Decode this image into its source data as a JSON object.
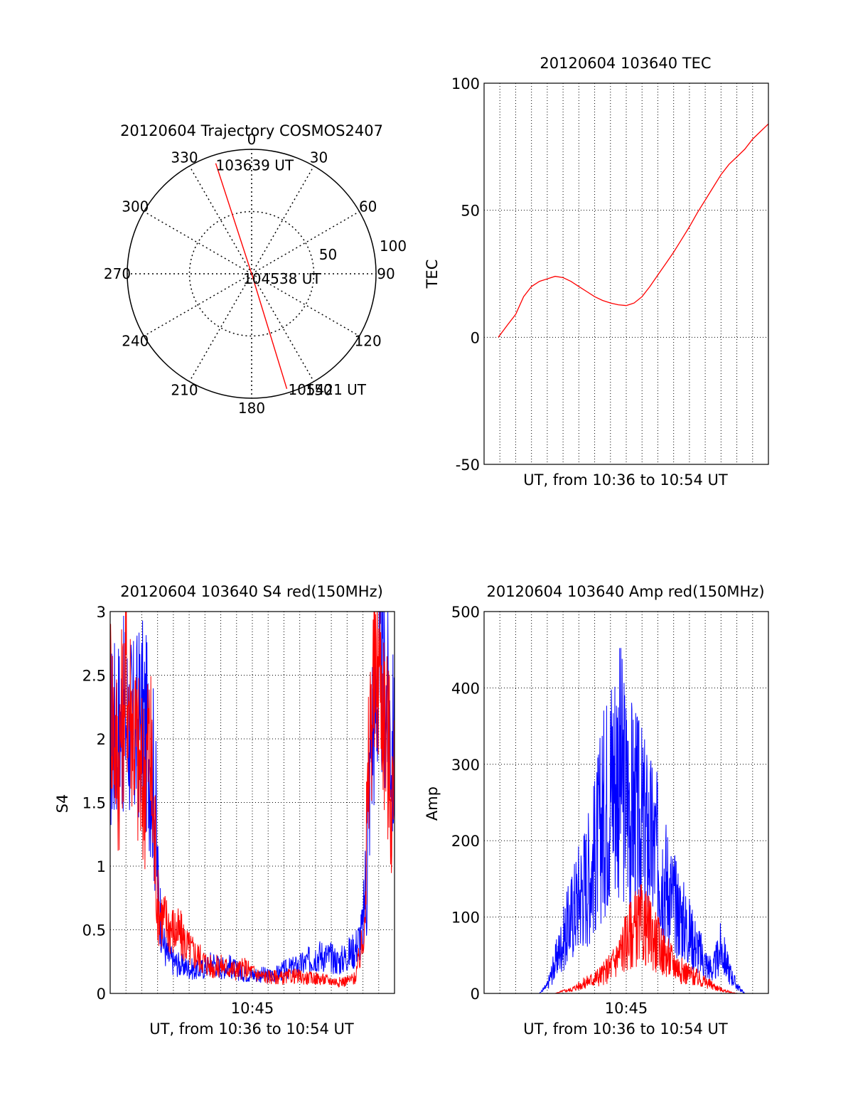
{
  "chart_data": [
    {
      "type": "polar",
      "title": "20120604 Trajectory COSMOS2407",
      "angle_labels": [
        "0",
        "30",
        "60",
        "90",
        "120",
        "150",
        "180",
        "210",
        "240",
        "270",
        "300",
        "330"
      ],
      "radial_labels": [
        "50",
        "100"
      ],
      "rlim": [
        0,
        100
      ],
      "grid": true,
      "trajectory": {
        "color": "#ff0000",
        "points": [
          {
            "label": "103639 UT",
            "azimuth": 342,
            "elevation": 6
          },
          {
            "label": "104538 UT",
            "azimuth": 0,
            "elevation": 90
          },
          {
            "label": "105421 UT",
            "azimuth": 163,
            "elevation": 3
          }
        ]
      }
    },
    {
      "type": "line",
      "title": "20120604 103640 TEC",
      "xlabel": "UT, from 10:36 to 10:54 UT",
      "ylabel": "TEC",
      "xlim": [
        0,
        18
      ],
      "ylim": [
        -50,
        100
      ],
      "yticks": [
        "-50",
        "0",
        "50",
        "100"
      ],
      "grid": true,
      "series": [
        {
          "color": "#ff0000",
          "x": [
            0.9,
            1.5,
            2.0,
            2.5,
            3.0,
            3.5,
            4.0,
            4.5,
            5.0,
            5.5,
            6.0,
            6.5,
            7.0,
            7.5,
            8.0,
            8.5,
            9.0,
            9.5,
            10.0,
            10.5,
            11.0,
            11.5,
            12.0,
            12.5,
            13.0,
            13.5,
            14.0,
            14.5,
            15.0,
            15.5,
            16.0,
            16.5,
            17.0,
            17.5,
            18.0
          ],
          "y": [
            0,
            5,
            9,
            16,
            20,
            22,
            23,
            24,
            23.5,
            22,
            20,
            18,
            16,
            14.5,
            13.5,
            12.8,
            12.5,
            13.5,
            16,
            20,
            24.5,
            29,
            33.5,
            38.5,
            43.5,
            49,
            54,
            59,
            64,
            68,
            71,
            74,
            78,
            81,
            84
          ]
        }
      ]
    },
    {
      "type": "line",
      "title": "20120604 103640 S4 red(150MHz)",
      "xlabel": "UT, from 10:36 to 10:54 UT",
      "ylabel": "S4",
      "xlim": [
        0,
        18
      ],
      "ylim": [
        0,
        3
      ],
      "xticks": [
        {
          "x": 9,
          "label": "10:45"
        }
      ],
      "yticks": [
        "0",
        "0.5",
        "1",
        "1.5",
        "2",
        "2.5",
        "3"
      ],
      "grid": true,
      "series": [
        {
          "color": "#0000ff",
          "x": [
            0,
            0.5,
            1,
            1.5,
            2,
            2.5,
            2.8,
            3,
            3.3,
            3.6,
            4,
            4.5,
            5,
            5.5,
            6,
            6.5,
            7,
            7.5,
            8,
            8.5,
            9,
            9.5,
            10,
            10.5,
            11,
            11.5,
            12,
            12.5,
            13,
            13.5,
            14,
            14.5,
            15,
            15.5,
            16,
            16.2,
            16.5,
            17,
            17.5,
            18
          ],
          "y": [
            2.0,
            2.1,
            2.2,
            2.0,
            2.2,
            1.9,
            1.6,
            0.9,
            0.45,
            0.3,
            0.25,
            0.22,
            0.2,
            0.18,
            0.2,
            0.25,
            0.2,
            0.22,
            0.18,
            0.16,
            0.15,
            0.15,
            0.14,
            0.15,
            0.18,
            0.2,
            0.22,
            0.25,
            0.3,
            0.3,
            0.28,
            0.25,
            0.3,
            0.35,
            0.5,
            1.0,
            2.0,
            2.5,
            2.3,
            1.8
          ]
        },
        {
          "color": "#ff0000",
          "x": [
            0,
            0.5,
            1,
            1.5,
            2,
            2.5,
            2.8,
            3,
            3.3,
            3.6,
            4,
            4.5,
            5,
            5.5,
            6,
            6.5,
            7,
            7.5,
            8,
            8.5,
            9,
            9.5,
            10,
            10.5,
            11,
            11.5,
            12,
            12.5,
            13,
            13.5,
            14,
            14.5,
            15,
            15.5,
            16,
            16.2,
            16.5,
            17,
            17.5,
            18
          ],
          "y": [
            2.4,
            1.8,
            2.5,
            2.1,
            1.6,
            2.0,
            1.2,
            0.7,
            0.6,
            0.55,
            0.5,
            0.45,
            0.35,
            0.3,
            0.25,
            0.2,
            0.22,
            0.2,
            0.18,
            0.2,
            0.17,
            0.14,
            0.13,
            0.13,
            0.12,
            0.14,
            0.13,
            0.12,
            0.12,
            0.11,
            0.1,
            0.09,
            0.1,
            0.12,
            0.4,
            1.0,
            2.2,
            2.6,
            2.0,
            1.4
          ]
        }
      ]
    },
    {
      "type": "line",
      "title": "20120604 103640 Amp red(150MHz)",
      "xlabel": "UT, from 10:36 to 10:54 UT",
      "ylabel": "Amp",
      "xlim": [
        0,
        18
      ],
      "ylim": [
        0,
        500
      ],
      "xticks": [
        {
          "x": 9,
          "label": "10:45"
        }
      ],
      "yticks": [
        "0",
        "100",
        "200",
        "300",
        "400",
        "500"
      ],
      "grid": true,
      "series": [
        {
          "color": "#0000ff",
          "x": [
            0.9,
            2,
            3,
            3.5,
            4,
            4.5,
            5,
            5.5,
            6,
            6.5,
            7,
            7.5,
            8,
            8.5,
            9,
            9.5,
            10,
            10.5,
            11,
            11.5,
            12,
            12.5,
            13,
            13.5,
            14,
            14.5,
            15,
            15.5,
            16,
            16.5,
            17,
            18
          ],
          "y": [
            0,
            0,
            0,
            0,
            10,
            40,
            70,
            100,
            130,
            150,
            180,
            230,
            280,
            300,
            260,
            240,
            220,
            200,
            180,
            150,
            120,
            100,
            80,
            60,
            40,
            30,
            60,
            30,
            10,
            0,
            0,
            0
          ]
        },
        {
          "color": "#ff0000",
          "x": [
            0.9,
            2,
            3,
            3.5,
            4,
            4.5,
            5,
            5.5,
            6,
            6.5,
            7,
            7.5,
            8,
            8.5,
            9,
            9.5,
            10,
            10.5,
            11,
            11.5,
            12,
            12.5,
            13,
            13.5,
            14,
            14.5,
            15,
            15.5,
            16,
            16.5,
            17,
            18
          ],
          "y": [
            0,
            0,
            0,
            0,
            0,
            0,
            3,
            5,
            10,
            15,
            20,
            25,
            35,
            50,
            70,
            85,
            90,
            80,
            65,
            50,
            40,
            30,
            25,
            20,
            15,
            10,
            5,
            2,
            0,
            0,
            0,
            0
          ]
        }
      ]
    }
  ]
}
